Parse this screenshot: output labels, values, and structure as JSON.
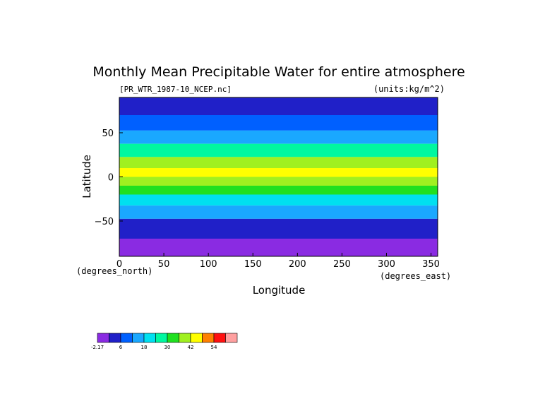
{
  "chart_data": {
    "type": "heatmap",
    "title": "Monthly Mean Precipitable Water for entire atmosphere",
    "subtitle_left": "[PR_WTR_1987-10_NCEP.nc]",
    "subtitle_right": "(units:kg/m^2)",
    "xlabel": "Longitude",
    "ylabel": "Latitude",
    "x_units_label": "(degrees_east)",
    "y_units_label": "(degrees_north)",
    "xlim": [
      0,
      357.5
    ],
    "ylim": [
      -90,
      90
    ],
    "x_ticks": [
      0,
      50,
      100,
      150,
      200,
      250,
      300,
      350
    ],
    "x_tick_labels": [
      "0",
      "50",
      "100",
      "150",
      "200",
      "250",
      "300",
      "350"
    ],
    "y_ticks": [
      50,
      0,
      -50
    ],
    "y_tick_labels": [
      "50",
      "0",
      "−50"
    ],
    "lat_bands": [
      {
        "lat": 80,
        "value": 6
      },
      {
        "lat": 60,
        "value": 10
      },
      {
        "lat": 45,
        "value": 16
      },
      {
        "lat": 30,
        "value": 28
      },
      {
        "lat": 15,
        "value": 40
      },
      {
        "lat": 5,
        "value": 48
      },
      {
        "lat": -5,
        "value": 44
      },
      {
        "lat": -15,
        "value": 36
      },
      {
        "lat": -25,
        "value": 26
      },
      {
        "lat": -40,
        "value": 16
      },
      {
        "lat": -55,
        "value": 8
      },
      {
        "lat": -65,
        "value": 5
      },
      {
        "lat": -75,
        "value": 2
      },
      {
        "lat": -85,
        "value": 0
      }
    ],
    "colorbar": {
      "colors": [
        "#8a2be2",
        "#2020c8",
        "#0060ff",
        "#1aa8ff",
        "#00e0f0",
        "#00f8a0",
        "#20e020",
        "#a0f020",
        "#ffff00",
        "#ff8000",
        "#ff1010",
        "#ffa0a0"
      ],
      "tick_labels": [
        "-2.17",
        "6",
        "18",
        "30",
        "42",
        "54"
      ]
    }
  }
}
